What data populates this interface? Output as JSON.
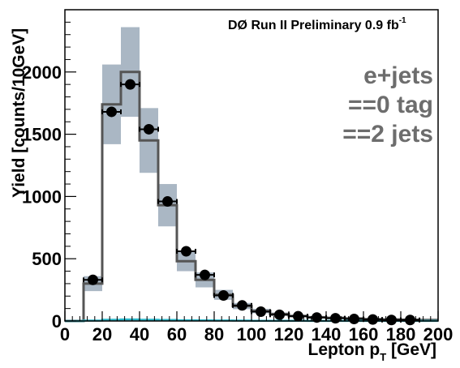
{
  "chart_data": {
    "type": "bar",
    "experiment_label": "DØ Run II Preliminary 0.9 fb",
    "experiment_label_sup": "-1",
    "annotations": [
      "e+jets",
      "==0 tag",
      "==2 jets"
    ],
    "xlabel": "Lepton p",
    "xlabel_sub": "T",
    "xlabel_unit": " [GeV]",
    "ylabel": "Yield [counts/10GeV]",
    "xlim": [
      0,
      200
    ],
    "ylim": [
      0,
      2500
    ],
    "x_ticks": [
      0,
      20,
      40,
      60,
      80,
      100,
      120,
      140,
      160,
      180,
      200
    ],
    "y_ticks": [
      0,
      500,
      1000,
      1500,
      2000
    ],
    "bin_edges": [
      0,
      10,
      20,
      30,
      40,
      50,
      60,
      70,
      80,
      90,
      100,
      110,
      120,
      130,
      140,
      150,
      160,
      170,
      180,
      190,
      200
    ],
    "series": [
      {
        "kind": "prediction",
        "values": [
          0,
          300,
          1740,
          2000,
          1450,
          930,
          480,
          330,
          210,
          120,
          80,
          55,
          40,
          30,
          25,
          20,
          15,
          12,
          10,
          8
        ]
      },
      {
        "kind": "uncertainty_band",
        "low": [
          0,
          240,
          1420,
          1640,
          1190,
          760,
          400,
          270,
          170,
          95,
          62,
          42,
          30,
          22,
          17,
          13,
          10,
          8,
          6,
          5
        ],
        "high": [
          0,
          360,
          2060,
          2360,
          1710,
          1100,
          560,
          390,
          250,
          145,
          98,
          68,
          50,
          38,
          32,
          27,
          20,
          16,
          13,
          11
        ]
      },
      {
        "kind": "data",
        "x": [
          15,
          25,
          35,
          45,
          55,
          65,
          75,
          85,
          95,
          105,
          115,
          125,
          135,
          145,
          155,
          165,
          175,
          185
        ],
        "y": [
          330,
          1680,
          1900,
          1540,
          960,
          560,
          370,
          205,
          125,
          75,
          50,
          38,
          28,
          22,
          16,
          12,
          8,
          8
        ]
      },
      {
        "kind": "background_line",
        "values": [
          0,
          3,
          10,
          12,
          10,
          8,
          6,
          5,
          4,
          3,
          2,
          2,
          2,
          1,
          1,
          1,
          1,
          1,
          1,
          1
        ]
      }
    ],
    "colors": {
      "band": "#aab7c4",
      "prediction": "#555555",
      "data": "#000000",
      "background_line": "#29b6c8",
      "annotation": "#6d6d6d"
    },
    "grid": false
  }
}
